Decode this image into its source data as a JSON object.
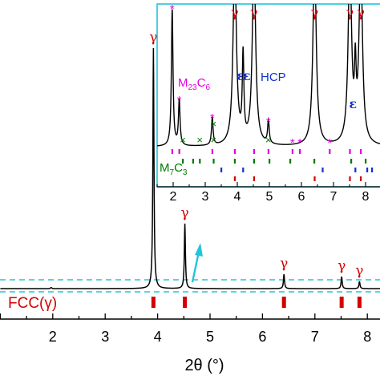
{
  "chart_data": [
    {
      "type": "line",
      "role": "main",
      "xlabel": "2θ (°)",
      "xlim": [
        1.0,
        9.0
      ],
      "x_ticks": [
        2,
        3,
        4,
        5,
        6,
        7,
        8
      ],
      "series": [
        {
          "name": "FCC(γ)",
          "color": "#d40000",
          "peaks": [
            {
              "x": 3.92,
              "height": 1.0,
              "label": "γ"
            },
            {
              "x": 4.52,
              "height": 0.27,
              "label": "γ"
            },
            {
              "x": 6.41,
              "height": 0.06,
              "label": "γ"
            },
            {
              "x": 7.51,
              "height": 0.05,
              "label": "γ"
            },
            {
              "x": 7.85,
              "height": 0.03,
              "label": "γ"
            }
          ]
        }
      ],
      "reference_marks": {
        "label": "FCC(γ)",
        "color": "#d40000",
        "x": [
          3.92,
          4.52,
          6.41,
          7.51,
          7.85
        ]
      },
      "zoom_band_color": "#22c5d8",
      "arrow_color": "#22c5d8"
    },
    {
      "type": "line",
      "role": "inset",
      "xlim": [
        1.5,
        8.5
      ],
      "x_ticks": [
        2,
        3,
        4,
        5,
        6,
        7,
        8
      ],
      "border_color": "#22c5d8",
      "peaks": [
        {
          "x": 1.97,
          "height": 1.0,
          "label": "*",
          "label_color": "#e000e0"
        },
        {
          "x": 2.19,
          "height": 0.33,
          "label": "*",
          "label_color": "#e000e0"
        },
        {
          "x": 3.22,
          "height": 0.2,
          "label": "*",
          "label_color": "#e000e0"
        },
        {
          "x": 3.92,
          "height": 1.4,
          "label": "γ",
          "label_color": "#d40000"
        },
        {
          "x": 4.18,
          "height": 0.62,
          "label": "ε",
          "label_color": "#1030d0"
        },
        {
          "x": 4.52,
          "height": 1.4,
          "label": "γ",
          "label_color": "#d40000"
        },
        {
          "x": 4.97,
          "height": 0.17,
          "label": "*",
          "label_color": "#e000e0"
        },
        {
          "x": 6.41,
          "height": 1.4,
          "label": "γ",
          "label_color": "#d40000"
        },
        {
          "x": 7.51,
          "height": 1.4,
          "label": "γ",
          "label_color": "#d40000"
        },
        {
          "x": 7.68,
          "height": 0.45,
          "label": "ε",
          "label_color": "#1030d0"
        },
        {
          "x": 7.85,
          "height": 1.4,
          "label": "γ",
          "label_color": "#d40000"
        }
      ],
      "markers": [
        {
          "x": 2.3,
          "label": "×",
          "color": "#007a00"
        },
        {
          "x": 2.83,
          "label": "×",
          "color": "#007a00"
        },
        {
          "x": 3.26,
          "label": "×",
          "color": "#007a00"
        },
        {
          "x": 4.97,
          "label": "×",
          "color": "#007a00"
        },
        {
          "x": 5.72,
          "label": "*",
          "color": "#e000e0"
        },
        {
          "x": 5.95,
          "label": "*",
          "color": "#e000e0"
        },
        {
          "x": 6.88,
          "label": "*",
          "color": "#e000e0"
        }
      ],
      "phase_labels": [
        {
          "text": "M23C6",
          "main": "M",
          "sub": "23",
          "main2": "C",
          "sub2": "6",
          "color": "#e000e0"
        },
        {
          "text": "HCP",
          "color": "#1030d0",
          "symbol": "ε"
        },
        {
          "text": "M7C3",
          "main": "M",
          "sub": "7",
          "main2": "C",
          "sub2": "3",
          "color": "#007a00"
        }
      ],
      "reference_rows": [
        {
          "phase": "M23C6",
          "color": "#e000e0",
          "x": [
            1.97,
            2.19,
            3.22,
            3.92,
            4.52,
            4.97,
            5.72,
            5.95,
            6.88,
            7.51,
            7.85
          ]
        },
        {
          "phase": "M7C3",
          "color": "#007a00",
          "x": [
            2.3,
            2.62,
            2.83,
            3.26,
            3.92,
            4.52,
            5.0,
            5.65,
            6.4,
            7.55,
            8.0
          ]
        },
        {
          "phase": "HCP",
          "color": "#1030d0",
          "x": [
            3.5,
            4.18,
            6.66,
            7.68,
            8.05,
            8.2
          ]
        },
        {
          "phase": "FCC(γ)",
          "color": "#d40000",
          "x": [
            3.92,
            4.52,
            6.41,
            7.51,
            7.85
          ]
        }
      ]
    }
  ]
}
